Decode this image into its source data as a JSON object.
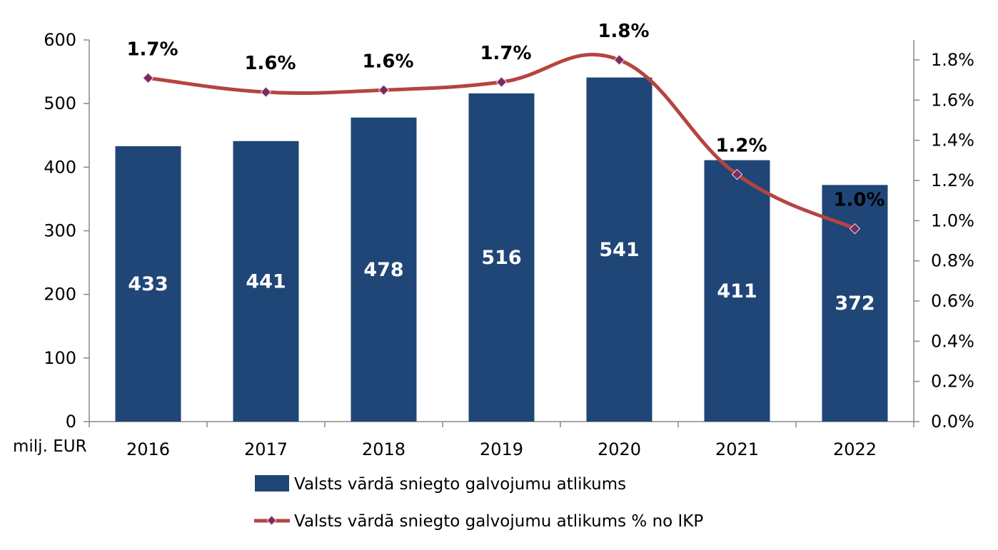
{
  "chart_data": {
    "type": "bar",
    "categories": [
      "2016",
      "2017",
      "2018",
      "2019",
      "2020",
      "2021",
      "2022"
    ],
    "series": [
      {
        "name": "Valsts vārdā sniegto galvojumu atlikums",
        "type": "bar",
        "axis": "left",
        "values": [
          433,
          441,
          478,
          516,
          541,
          411,
          372
        ],
        "data_labels": [
          "433",
          "441",
          "478",
          "516",
          "541",
          "411",
          "372"
        ],
        "color": "#1f4677"
      },
      {
        "name": "Valsts vārdā sniegto galvojumu atlikums % no IKP",
        "type": "line",
        "axis": "right",
        "values": [
          1.71,
          1.64,
          1.65,
          1.69,
          1.8,
          1.23,
          0.96
        ],
        "data_labels": [
          "1.7%",
          "1.6%",
          "1.6%",
          "1.7%",
          "1.8%",
          "1.2%",
          "1.0%"
        ],
        "color": "#b5443f",
        "marker_color": "#7b2c5e"
      }
    ],
    "y_left": {
      "label": "milj. EUR",
      "ylim": [
        0,
        600
      ],
      "ticks": [
        "0",
        "100",
        "200",
        "300",
        "400",
        "500",
        "600"
      ]
    },
    "y_right": {
      "ylim": [
        0,
        1.9
      ],
      "ticks": [
        "0.0%",
        "0.2%",
        "0.4%",
        "0.6%",
        "0.8%",
        "1.0%",
        "1.2%",
        "1.4%",
        "1.6%",
        "1.8%"
      ]
    },
    "grid": false,
    "legend_position": "bottom"
  }
}
